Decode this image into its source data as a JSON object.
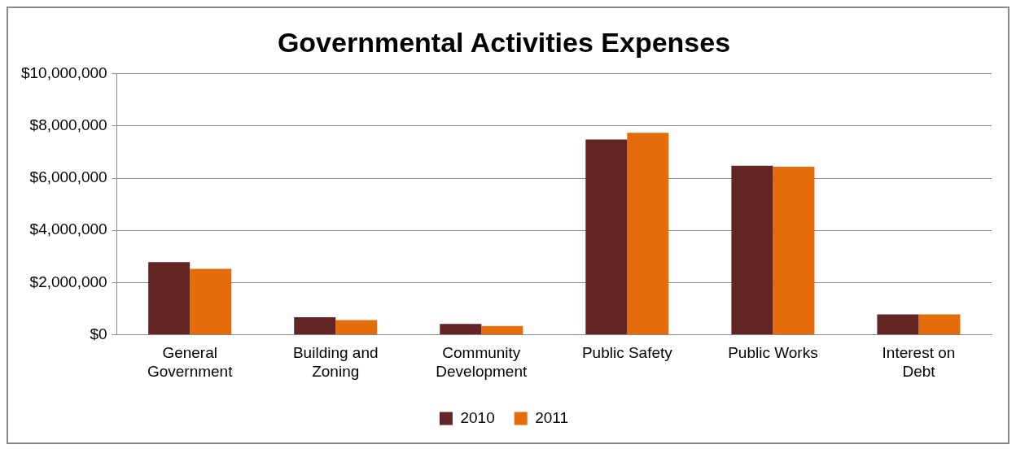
{
  "chart_data": {
    "type": "bar",
    "title": "Governmental Activities Expenses",
    "categories": [
      "General Government",
      "Building and Zoning",
      "Community Development",
      "Public Safety",
      "Public Works",
      "Interest on Debt"
    ],
    "series": [
      {
        "name": "2010",
        "color": "#632523",
        "values": [
          2780000,
          670000,
          410000,
          7480000,
          6480000,
          780000
        ]
      },
      {
        "name": "2011",
        "color": "#e46c0a",
        "values": [
          2520000,
          560000,
          330000,
          7740000,
          6440000,
          780000
        ]
      }
    ],
    "ylim": [
      0,
      10000000
    ],
    "yticks": [
      {
        "value": 0,
        "label": "$0"
      },
      {
        "value": 2000000,
        "label": "$2,000,000"
      },
      {
        "value": 4000000,
        "label": "$4,000,000"
      },
      {
        "value": 6000000,
        "label": "$6,000,000"
      },
      {
        "value": 8000000,
        "label": "$8,000,000"
      },
      {
        "value": 10000000,
        "label": "$10,000,000"
      }
    ],
    "grid": "y",
    "legend": "bottom"
  }
}
